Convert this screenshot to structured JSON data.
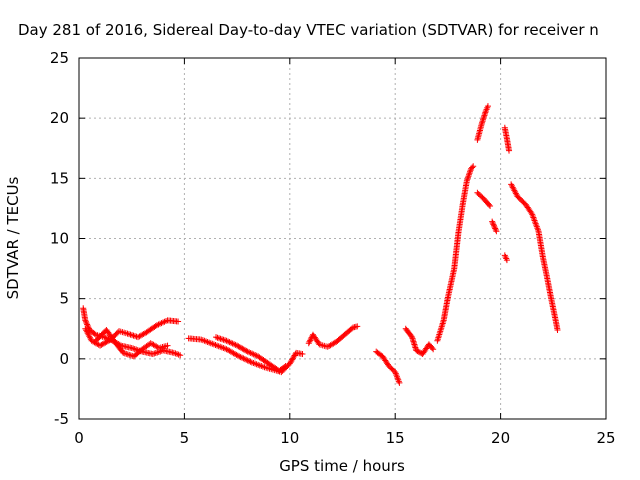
{
  "chart_data": {
    "type": "scatter",
    "title": "Day 281 of 2016, Sidereal Day-to-day VTEC variation (SDTVAR) for receiver n",
    "xlabel": "GPS time / hours",
    "ylabel": "SDTVAR / TECUs",
    "xlim": [
      0,
      25
    ],
    "ylim": [
      -5,
      25
    ],
    "xticks": [
      "0",
      "5",
      "10",
      "15",
      "20",
      "25"
    ],
    "yticks": [
      "-5",
      "0",
      "5",
      "10",
      "15",
      "20",
      "25"
    ],
    "grid": true,
    "marker": "+",
    "color": "#ff0000",
    "series": [
      {
        "name": "SDTVAR",
        "segments": [
          [
            [
              0.2,
              4.2
            ],
            [
              0.3,
              3.2
            ],
            [
              0.5,
              2.4
            ],
            [
              0.8,
              2.0
            ],
            [
              1.2,
              1.8
            ],
            [
              1.6,
              1.5
            ],
            [
              2.0,
              1.1
            ],
            [
              2.5,
              0.9
            ],
            [
              3.0,
              0.6
            ],
            [
              3.5,
              0.4
            ],
            [
              4.0,
              0.7
            ],
            [
              4.5,
              0.5
            ],
            [
              4.8,
              0.3
            ]
          ],
          [
            [
              0.3,
              2.5
            ],
            [
              0.6,
              1.5
            ],
            [
              1.0,
              1.1
            ],
            [
              1.5,
              1.6
            ],
            [
              1.9,
              2.3
            ],
            [
              2.3,
              2.1
            ],
            [
              2.8,
              1.8
            ],
            [
              3.2,
              2.2
            ],
            [
              3.7,
              2.8
            ],
            [
              4.2,
              3.2
            ],
            [
              4.7,
              3.1
            ]
          ],
          [
            [
              0.8,
              1.5
            ],
            [
              1.3,
              2.4
            ],
            [
              1.7,
              1.4
            ],
            [
              2.1,
              0.5
            ],
            [
              2.6,
              0.2
            ],
            [
              3.0,
              0.8
            ],
            [
              3.4,
              1.3
            ],
            [
              3.8,
              0.9
            ],
            [
              4.2,
              1.1
            ]
          ],
          [
            [
              5.2,
              1.7
            ],
            [
              5.8,
              1.6
            ],
            [
              6.4,
              1.2
            ],
            [
              7.0,
              0.8
            ],
            [
              7.6,
              0.2
            ],
            [
              8.2,
              -0.3
            ],
            [
              8.8,
              -0.7
            ],
            [
              9.2,
              -0.9
            ],
            [
              9.6,
              -1.1
            ],
            [
              10.0,
              -0.4
            ],
            [
              10.3,
              0.5
            ],
            [
              10.6,
              0.4
            ]
          ],
          [
            [
              6.5,
              1.8
            ],
            [
              7.0,
              1.5
            ],
            [
              7.5,
              1.1
            ],
            [
              8.0,
              0.6
            ],
            [
              8.5,
              0.2
            ],
            [
              9.0,
              -0.4
            ],
            [
              9.5,
              -1.0
            ],
            [
              9.8,
              -0.6
            ]
          ],
          [
            [
              10.9,
              1.3
            ],
            [
              11.1,
              2.0
            ],
            [
              11.4,
              1.2
            ],
            [
              11.8,
              1.0
            ],
            [
              12.2,
              1.4
            ],
            [
              12.6,
              2.0
            ],
            [
              13.0,
              2.6
            ],
            [
              13.2,
              2.7
            ]
          ],
          [
            [
              14.1,
              0.6
            ],
            [
              14.4,
              0.2
            ],
            [
              14.7,
              -0.6
            ],
            [
              15.0,
              -1.1
            ],
            [
              15.2,
              -2.0
            ]
          ],
          [
            [
              15.5,
              2.5
            ],
            [
              15.8,
              1.8
            ],
            [
              16.0,
              0.7
            ],
            [
              16.3,
              0.4
            ],
            [
              16.6,
              1.2
            ],
            [
              16.8,
              0.8
            ]
          ],
          [
            [
              17.0,
              1.5
            ],
            [
              17.3,
              3.2
            ],
            [
              17.5,
              5.1
            ],
            [
              17.8,
              7.5
            ],
            [
              18.0,
              10.5
            ],
            [
              18.2,
              12.8
            ],
            [
              18.4,
              14.8
            ],
            [
              18.6,
              15.8
            ],
            [
              18.7,
              16.0
            ]
          ],
          [
            [
              18.9,
              18.2
            ],
            [
              19.1,
              19.5
            ],
            [
              19.3,
              20.6
            ],
            [
              19.4,
              21.0
            ]
          ],
          [
            [
              18.9,
              13.8
            ],
            [
              19.2,
              13.3
            ],
            [
              19.5,
              12.7
            ]
          ],
          [
            [
              19.6,
              11.4
            ],
            [
              19.8,
              10.6
            ]
          ],
          [
            [
              20.2,
              19.2
            ],
            [
              20.3,
              18.3
            ],
            [
              20.4,
              17.3
            ]
          ],
          [
            [
              20.2,
              8.6
            ],
            [
              20.3,
              8.2
            ]
          ],
          [
            [
              20.5,
              14.5
            ],
            [
              20.8,
              13.5
            ],
            [
              21.2,
              12.8
            ],
            [
              21.5,
              12.0
            ],
            [
              21.8,
              10.6
            ],
            [
              22.0,
              8.5
            ],
            [
              22.2,
              6.8
            ],
            [
              22.4,
              5.0
            ],
            [
              22.6,
              3.3
            ],
            [
              22.7,
              2.4
            ]
          ]
        ]
      }
    ]
  }
}
